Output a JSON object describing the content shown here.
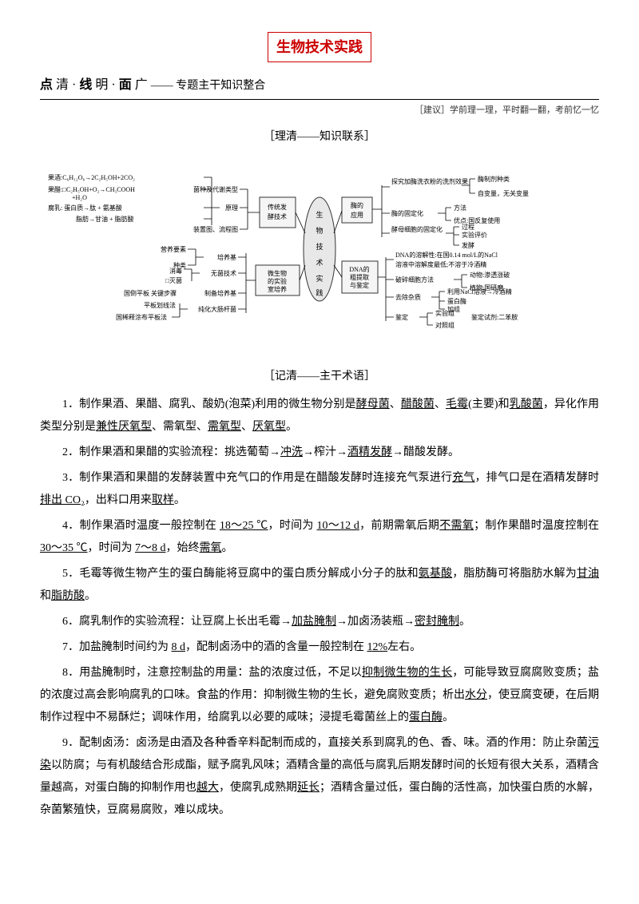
{
  "title": "生物技术实践",
  "subtitle": {
    "p1": "点",
    "c1": "清",
    "p2": "线",
    "c2": "明",
    "p3": "面",
    "c3": "广",
    "tail": "—— 专题主干知识整合"
  },
  "hint": "［建议］学前理一理，平时翻一翻，考前忆一忆",
  "sec1": "［理清——知识联系］",
  "sec2": "［记清——主干术语］",
  "diagram": {
    "center": "生物技术实践",
    "left_boxes": [
      "传统发酵技术",
      "微生物的实验室培养"
    ],
    "right_boxes": [
      "酶的应用",
      "DNA的粗提取与鉴定"
    ],
    "l1": [
      "果酒:C₆H₁₂O₆→2C₂H₅OH+2CO₂",
      "果醋:□C₂H₅OH+O₂→CH₃COOH",
      "+H₂O",
      "腐乳: 蛋白质→肽 + 氨基酸",
      "脂肪→甘油 + 脂肪酸",
      "装置图、流程图"
    ],
    "l1_lab": [
      "菌种及代谢类型",
      "原理"
    ],
    "l2": [
      "营养要素",
      "种类",
      "消毒",
      "□灭菌",
      "培养基",
      "无菌技术",
      "制备培养基",
      "纯化大肠杆菌"
    ],
    "l2_lab": [
      "国倒平板 关键步骤",
      "平板划线法",
      "国稀释涂布平板法"
    ],
    "r1": [
      "探究加酶洗衣粉的洗剂效果",
      "酶的固定化",
      "酵母细胞的固定化"
    ],
    "r1_sub": [
      "酶制剂种类",
      "自变量，无关变量",
      "方法",
      "优点:国反复使用",
      "过程",
      "实验评价",
      "发酵"
    ],
    "r2": [
      "DNA的溶解性:在国0.14 mol/L的NaCl",
      "溶液中溶解度最低;不溶于冷酒精",
      "破碎细胞方法",
      "去除杂质",
      "鉴定"
    ],
    "r2_sub": [
      "动物:渗透涨破",
      "植物:国研磨",
      "利用NaCl溶液→冷酒精",
      "蛋白酶",
      "加组",
      "实验组",
      "对照组",
      "鉴定试剂:二苯胺"
    ]
  },
  "paras": [
    {
      "n": "1．",
      "pre": "制作果酒、果醋、腐乳、酸奶(泡菜)利用的微生物分别是",
      "u1": "酵母菌",
      "t1": "、",
      "u2": "醋酸菌",
      "t2": "、",
      "u3": "毛霉",
      "t3": "(主要)和",
      "u4": "乳酸菌",
      "t4": "，异化作用类型分别是",
      "u5": "兼性厌氧型",
      "t5": "、需氧型、",
      "u6": "需氧型",
      "t6": "、",
      "u7": "厌氧型",
      "t7": "。"
    },
    {
      "n": "2．",
      "pre": "制作果酒和果醋的实验流程：挑选葡萄→",
      "u1": "冲洗",
      "t1": "→榨汁→",
      "u2": "酒精发酵",
      "t2": "→醋酸发酵。"
    },
    {
      "n": "3．",
      "pre": "制作果酒和果醋的发酵装置中充气口的作用是在醋酸发酵时连接充气泵进行",
      "u1": "充气",
      "t1": "，排气口是在酒精发酵时",
      "u2": "排出 CO₂",
      "t2": "，出料口用来",
      "u3": "取样",
      "t3": "。"
    },
    {
      "n": "4．",
      "pre": "制作果酒时温度一般控制在 ",
      "u1": "18～25 ℃",
      "t1": "，时间为 ",
      "u2": "10～12 d",
      "t2": "，前期需氧后期",
      "u3": "不需氧",
      "t3": "；制作果醋时温度控制在 ",
      "u4": "30～35 ℃",
      "t4": "，时间为 ",
      "u5": "7～8 d",
      "t5": "，始终",
      "u6": "需氧",
      "t6": "。"
    },
    {
      "n": "5．",
      "pre": "毛霉等微生物产生的蛋白酶能将豆腐中的蛋白质分解成小分子的肽和",
      "u1": "氨基酸",
      "t1": "，脂肪酶可将脂肪水解为",
      "u2": "甘油",
      "t2": "和",
      "u3": "脂肪酸",
      "t3": "。"
    },
    {
      "n": "6．",
      "pre": "腐乳制作的实验流程：让豆腐上长出毛霉→",
      "u1": "加盐腌制",
      "t1": "→加卤汤装瓶→",
      "u2": "密封腌制",
      "t2": "。"
    },
    {
      "n": "7．",
      "pre": "加盐腌制时间约为 ",
      "u1": "8 d",
      "t1": "，配制卤汤中的酒的含量一般控制在 ",
      "u2": "12%",
      "t2": "左右。"
    },
    {
      "n": "8．",
      "pre": "用盐腌制时，注意控制盐的用量：盐的浓度过低，不足以",
      "u1": "抑制微生物的生长",
      "t1": "，可能导致豆腐腐败变质；盐的浓度过高会影响腐乳的口味。食盐的作用：抑制微生物的生长，避免腐败变质；析出",
      "u2": "水分",
      "t2": "，使豆腐变硬，在后期制作过程中不易酥烂；调味作用，给腐乳以必要的咸味；浸提毛霉菌丝上的",
      "u3": "蛋白酶",
      "t3": "。"
    },
    {
      "n": "9．",
      "pre": "配制卤汤：卤汤是由酒及各种香辛料配制而成的，直接关系到腐乳的色、香、味。酒的作用：防止杂菌",
      "u1": "污染",
      "t1": "以防腐；与有机酸结合形成酯，赋予腐乳风味；酒精含量的高低与腐乳后期发酵时间的长短有很大关系，酒精含量越高，对蛋白酶的抑制作用也",
      "u2": "越大",
      "t2": "，使腐乳成熟期",
      "u3": "延长",
      "t3": "；酒精含量过低，蛋白酶的活性高，加快蛋白质的水解，杂菌繁殖快，豆腐易腐败，难以成块。"
    }
  ]
}
